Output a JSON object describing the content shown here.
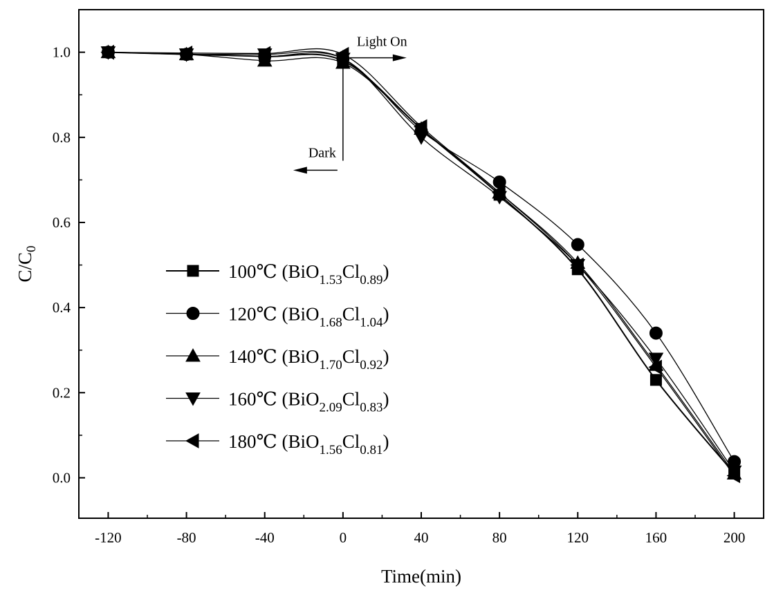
{
  "chart_data": {
    "type": "line",
    "xlabel": "Time(min)",
    "ylabel": "C/C",
    "ylabel_sub": "0",
    "x": [
      -120,
      -80,
      -40,
      0,
      40,
      80,
      120,
      160,
      200
    ],
    "xlim": [
      -135,
      215
    ],
    "ylim": [
      -0.095,
      1.1
    ],
    "xticks": [
      "-120",
      "-80",
      "-40",
      "0",
      "40",
      "80",
      "120",
      "160",
      "200"
    ],
    "yticks": [
      "0.0",
      "0.2",
      "0.4",
      "0.6",
      "0.8",
      "1.0"
    ],
    "grid": false,
    "legend_position": "center-left",
    "series": [
      {
        "marker": "square",
        "values": [
          1.0,
          0.995,
          0.99,
          0.98,
          0.82,
          0.665,
          0.49,
          0.23,
          0.01
        ],
        "label": {
          "temp": "100℃",
          "open": " (BiO",
          "sub1": "1.53",
          "mid": "Cl",
          "sub2": "0.89",
          "close": ")"
        }
      },
      {
        "marker": "circle",
        "values": [
          1.0,
          0.995,
          0.99,
          0.985,
          0.815,
          0.695,
          0.548,
          0.34,
          0.038
        ],
        "label": {
          "temp": "120℃",
          "open": " (BiO",
          "sub1": "1.68",
          "mid": "Cl",
          "sub2": "1.04",
          "close": ")"
        }
      },
      {
        "marker": "triangle-up",
        "values": [
          1.0,
          0.995,
          0.98,
          0.975,
          0.82,
          0.67,
          0.505,
          0.265,
          0.01
        ],
        "label": {
          "temp": "140℃",
          "open": " (BiO",
          "sub1": "1.70",
          "mid": "Cl",
          "sub2": "0.92",
          "close": ")"
        }
      },
      {
        "marker": "triangle-down",
        "values": [
          1.0,
          0.995,
          0.995,
          0.985,
          0.8,
          0.66,
          0.5,
          0.28,
          0.015
        ],
        "label": {
          "temp": "160℃",
          "open": " (BiO",
          "sub1": "2.09",
          "mid": "Cl",
          "sub2": "0.83",
          "close": ")"
        }
      },
      {
        "marker": "triangle-left",
        "values": [
          1.0,
          0.998,
          0.997,
          0.995,
          0.825,
          0.67,
          0.5,
          0.26,
          0.005
        ],
        "label": {
          "temp": "180℃",
          "open": " (BiO",
          "sub1": "1.56",
          "mid": "Cl",
          "sub2": "0.81",
          "close": ")"
        }
      }
    ],
    "annotations": [
      {
        "text": "Light On",
        "direction": "right",
        "anchor_x": 0,
        "anchor_y": 1.0
      },
      {
        "text": "Dark",
        "direction": "left",
        "anchor_x": 0,
        "anchor_y": 0.765
      }
    ]
  }
}
